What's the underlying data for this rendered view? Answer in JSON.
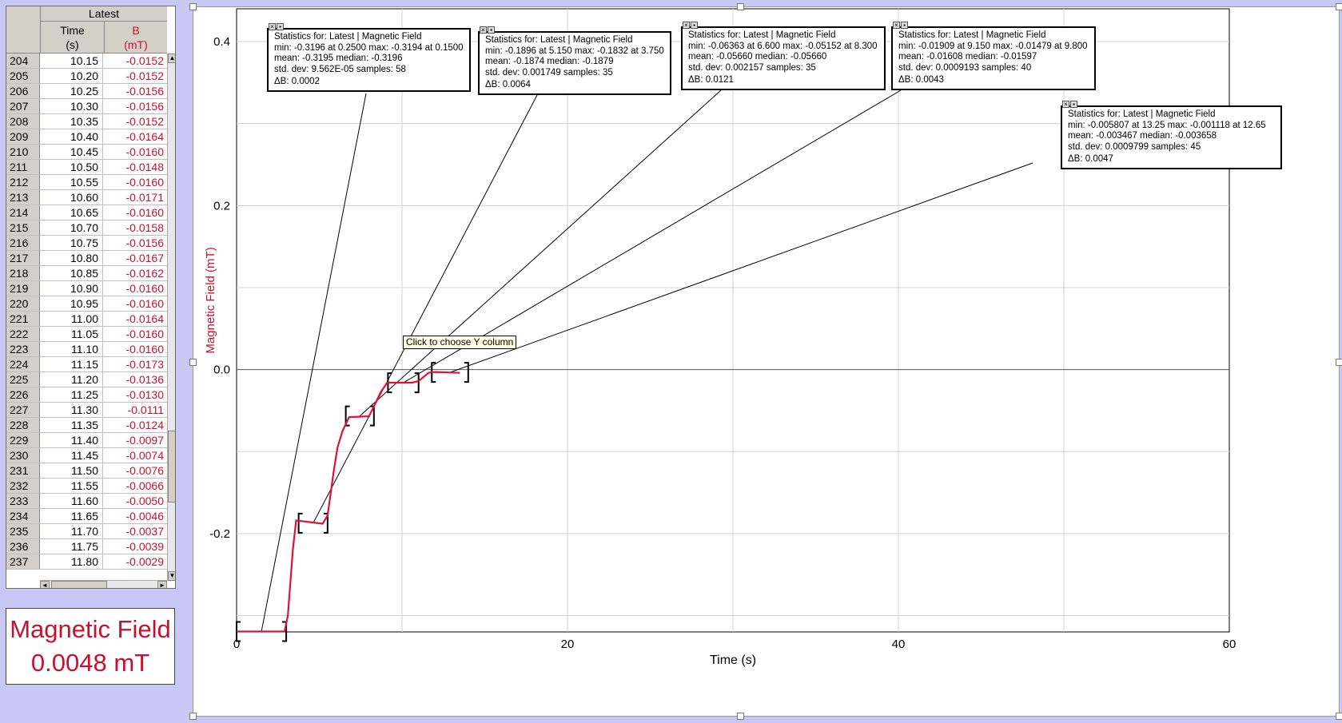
{
  "table": {
    "group_header": "Latest",
    "columns": [
      {
        "name": "Time",
        "unit": "(s)"
      },
      {
        "name": "B",
        "unit": "(mT)"
      }
    ],
    "rows": [
      {
        "idx": "204",
        "t": "10.15",
        "b": "-0.0152"
      },
      {
        "idx": "205",
        "t": "10.20",
        "b": "-0.0152"
      },
      {
        "idx": "206",
        "t": "10.25",
        "b": "-0.0156"
      },
      {
        "idx": "207",
        "t": "10.30",
        "b": "-0.0156"
      },
      {
        "idx": "208",
        "t": "10.35",
        "b": "-0.0152"
      },
      {
        "idx": "209",
        "t": "10.40",
        "b": "-0.0164"
      },
      {
        "idx": "210",
        "t": "10.45",
        "b": "-0.0160"
      },
      {
        "idx": "211",
        "t": "10.50",
        "b": "-0.0148"
      },
      {
        "idx": "212",
        "t": "10.55",
        "b": "-0.0160"
      },
      {
        "idx": "213",
        "t": "10.60",
        "b": "-0.0171"
      },
      {
        "idx": "214",
        "t": "10.65",
        "b": "-0.0160"
      },
      {
        "idx": "215",
        "t": "10.70",
        "b": "-0.0158"
      },
      {
        "idx": "216",
        "t": "10.75",
        "b": "-0.0156"
      },
      {
        "idx": "217",
        "t": "10.80",
        "b": "-0.0167"
      },
      {
        "idx": "218",
        "t": "10.85",
        "b": "-0.0162"
      },
      {
        "idx": "219",
        "t": "10.90",
        "b": "-0.0160"
      },
      {
        "idx": "220",
        "t": "10.95",
        "b": "-0.0160"
      },
      {
        "idx": "221",
        "t": "11.00",
        "b": "-0.0164"
      },
      {
        "idx": "222",
        "t": "11.05",
        "b": "-0.0160"
      },
      {
        "idx": "223",
        "t": "11.10",
        "b": "-0.0160"
      },
      {
        "idx": "224",
        "t": "11.15",
        "b": "-0.0173"
      },
      {
        "idx": "225",
        "t": "11.20",
        "b": "-0.0136"
      },
      {
        "idx": "226",
        "t": "11.25",
        "b": "-0.0130"
      },
      {
        "idx": "227",
        "t": "11.30",
        "b": "-0.0111"
      },
      {
        "idx": "228",
        "t": "11.35",
        "b": "-0.0124"
      },
      {
        "idx": "229",
        "t": "11.40",
        "b": "-0.0097"
      },
      {
        "idx": "230",
        "t": "11.45",
        "b": "-0.0074"
      },
      {
        "idx": "231",
        "t": "11.50",
        "b": "-0.0076"
      },
      {
        "idx": "232",
        "t": "11.55",
        "b": "-0.0066"
      },
      {
        "idx": "233",
        "t": "11.60",
        "b": "-0.0050"
      },
      {
        "idx": "234",
        "t": "11.65",
        "b": "-0.0046"
      },
      {
        "idx": "235",
        "t": "11.70",
        "b": "-0.0037"
      },
      {
        "idx": "236",
        "t": "11.75",
        "b": "-0.0039"
      },
      {
        "idx": "237",
        "t": "11.80",
        "b": "-0.0029"
      }
    ]
  },
  "meter": {
    "label": "Magnetic Field",
    "value": "0.0048 mT"
  },
  "tooltip": "Click to choose Y column",
  "stats_boxes": [
    {
      "line1": "Statistics for: Latest | Magnetic Field",
      "line2": "min: -0.3196 at 0.2500 max: -0.3194 at 0.1500",
      "line3": "mean: -0.3195 median: -0.3196",
      "line4": "std. dev: 9.562E-05 samples: 58",
      "delta": "ΔB: 0.0002"
    },
    {
      "line1": "Statistics for: Latest | Magnetic Field",
      "line2": "min: -0.1896 at 5.150 max: -0.1832 at 3.750",
      "line3": "mean: -0.1874 median: -0.1879",
      "line4": "std. dev: 0.001749 samples: 35",
      "delta": "ΔB: 0.0064"
    },
    {
      "line1": "Statistics for: Latest | Magnetic Field",
      "line2": "min: -0.06363 at 6.600 max: -0.05152 at 8.300",
      "line3": "mean: -0.05660 median: -0.05660",
      "line4": "std. dev: 0.002157 samples: 35",
      "delta": "ΔB: 0.0121"
    },
    {
      "line1": "Statistics for: Latest | Magnetic Field",
      "line2": "min: -0.01909 at 9.150 max: -0.01479 at 9.800",
      "line3": "mean: -0.01608 median: -0.01597",
      "line4": "std. dev: 0.0009193 samples: 40",
      "delta": "ΔB: 0.0043"
    },
    {
      "line1": "Statistics for: Latest | Magnetic Field",
      "line2": "min: -0.005807 at 13.25 max: -0.001118 at 12.65",
      "line3": "mean: -0.003467 median: -0.003658",
      "line4": "std. dev: 0.0009799 samples: 45",
      "delta": "ΔB: 0.0047"
    }
  ],
  "chart_data": {
    "type": "line",
    "xlabel": "Time (s)",
    "ylabel": "Magnetic Field (mT)",
    "xlim": [
      0,
      60
    ],
    "ylim": [
      -0.32,
      0.44
    ],
    "x_ticks": [
      0,
      20,
      40,
      60
    ],
    "x_tick_labels": [
      "0",
      "20",
      "40",
      "60"
    ],
    "y_ticks": [
      -0.2,
      0.0,
      0.2,
      0.4
    ],
    "y_tick_labels": [
      "-0.2",
      "0.0",
      "0.2",
      "0.4"
    ],
    "grid": true,
    "series_color": "#e0103a",
    "series": [
      {
        "x": [
          0,
          2.9,
          3.1,
          3.4,
          3.6,
          5.2,
          5.5,
          5.9,
          6.1,
          6.4,
          6.8,
          8.0,
          8.3,
          8.7,
          9.1,
          10.6,
          11.0,
          11.3,
          11.6,
          12.0,
          13.5
        ],
        "y": [
          -0.3195,
          -0.3195,
          -0.3,
          -0.22,
          -0.184,
          -0.188,
          -0.178,
          -0.12,
          -0.095,
          -0.075,
          -0.058,
          -0.057,
          -0.045,
          -0.028,
          -0.016,
          -0.016,
          -0.014,
          -0.009,
          -0.004,
          -0.003,
          -0.004
        ]
      }
    ],
    "selection_ranges": [
      {
        "start": 0.0,
        "end": 3.0,
        "mean": -0.3195
      },
      {
        "start": 3.75,
        "end": 5.5,
        "mean": -0.1874
      },
      {
        "start": 6.6,
        "end": 8.3,
        "mean": -0.0566
      },
      {
        "start": 9.15,
        "end": 11.0,
        "mean": -0.01608
      },
      {
        "start": 11.8,
        "end": 14.0,
        "mean": -0.003467
      }
    ]
  }
}
